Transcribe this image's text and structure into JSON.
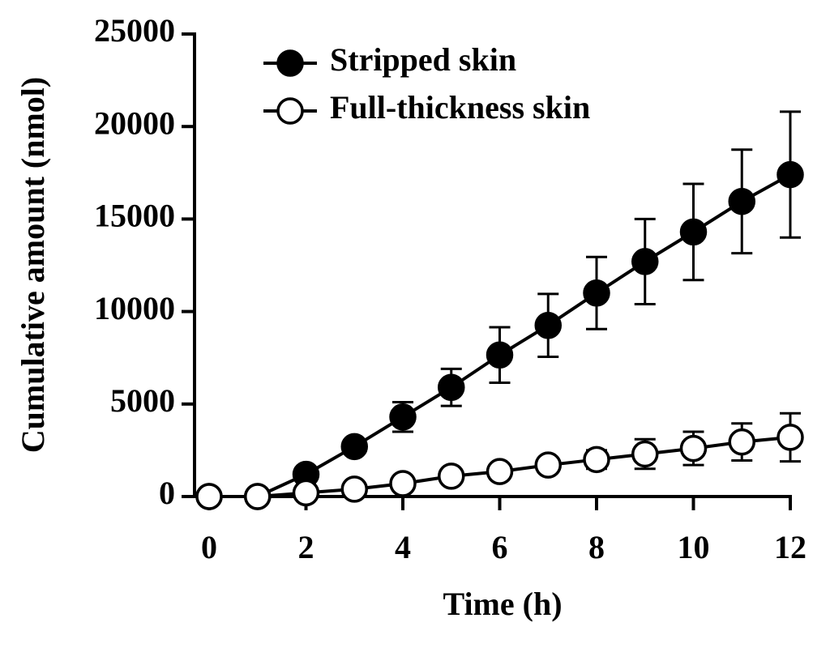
{
  "chart_data": {
    "type": "line",
    "x_label": "Time (h)",
    "y_label": "Cumulative amount (nmol)",
    "x": [
      0,
      1,
      2,
      3,
      4,
      5,
      6,
      7,
      8,
      9,
      10,
      11,
      12
    ],
    "series": [
      {
        "name": "Stripped skin",
        "color": "#000000",
        "fill": "#000000",
        "values": [
          0,
          0,
          1200,
          2700,
          4300,
          5900,
          7650,
          9250,
          11000,
          12700,
          14300,
          15950,
          17400
        ],
        "errors": [
          null,
          null,
          200,
          300,
          800,
          1000,
          1500,
          1700,
          1950,
          2300,
          2600,
          2800,
          3400
        ]
      },
      {
        "name": "Full-thickness skin",
        "color": "#000000",
        "fill": "#ffffff",
        "values": [
          0,
          0,
          200,
          400,
          700,
          1100,
          1350,
          1700,
          2000,
          2300,
          2600,
          2950,
          3200
        ],
        "errors": [
          null,
          null,
          100,
          150,
          200,
          300,
          350,
          400,
          500,
          800,
          900,
          1000,
          1300
        ]
      }
    ],
    "xlim": [
      0,
      12
    ],
    "xticks": [
      0,
      2,
      4,
      6,
      8,
      10,
      12
    ],
    "ylim": [
      0,
      25000
    ],
    "yticks": [
      0,
      5000,
      10000,
      15000,
      20000,
      25000
    ],
    "legend": "top-left"
  }
}
